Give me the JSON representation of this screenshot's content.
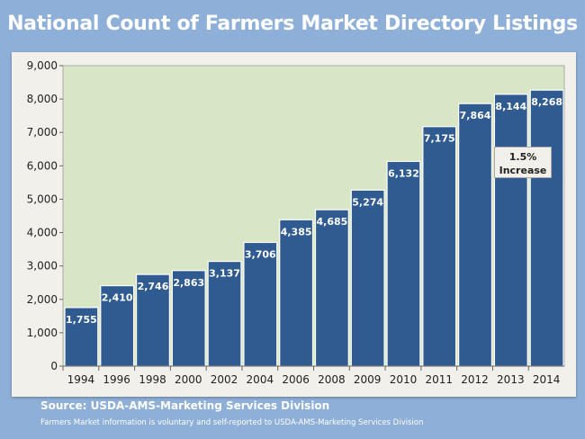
{
  "chart_data": {
    "type": "bar",
    "title": "National Count of Farmers Market Directory Listings",
    "categories": [
      "1994",
      "1996",
      "1998",
      "2000",
      "2002",
      "2004",
      "2006",
      "2008",
      "2009",
      "2010",
      "2011",
      "2012",
      "2013",
      "2014"
    ],
    "values": [
      1755,
      2410,
      2746,
      2863,
      3137,
      3706,
      4385,
      4685,
      5274,
      6132,
      7175,
      7864,
      8144,
      8268
    ],
    "data_labels": [
      "1,755",
      "2,410",
      "2,746",
      "2,863",
      "3,137",
      "3,706",
      "4,385",
      "4,685",
      "5,274",
      "6,132",
      "7,175",
      "7,864",
      "8,144",
      "8,268"
    ],
    "ylim": [
      0,
      9000
    ],
    "yticks": [
      0,
      1000,
      2000,
      3000,
      4000,
      5000,
      6000,
      7000,
      8000,
      9000
    ],
    "ytick_labels": [
      "0",
      "1,000",
      "2,000",
      "3,000",
      "4,000",
      "5,000",
      "6,000",
      "7,000",
      "8,000",
      "9,000"
    ],
    "xlabel": "",
    "ylabel": "",
    "annotation": {
      "line1": "1.5%",
      "line2": "Increase"
    },
    "colors": {
      "bar": "#2f5b91",
      "plot_bg": "#d9e6c5"
    }
  },
  "footer": {
    "source": "Source:  USDA-AMS-Marketing Services Division",
    "note": "Farmers Market information is voluntary and self-reported to USDA-AMS-Marketing Services Division"
  }
}
